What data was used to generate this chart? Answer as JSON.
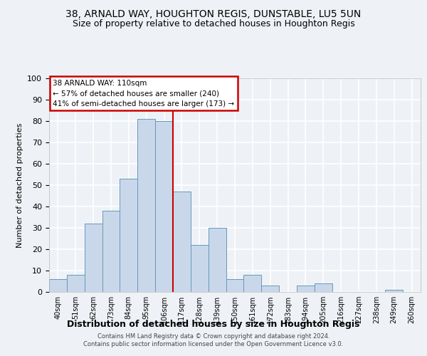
{
  "title": "38, ARNALD WAY, HOUGHTON REGIS, DUNSTABLE, LU5 5UN",
  "subtitle": "Size of property relative to detached houses in Houghton Regis",
  "xlabel": "Distribution of detached houses by size in Houghton Regis",
  "ylabel": "Number of detached properties",
  "bar_labels": [
    "40sqm",
    "51sqm",
    "62sqm",
    "73sqm",
    "84sqm",
    "95sqm",
    "106sqm",
    "117sqm",
    "128sqm",
    "139sqm",
    "150sqm",
    "161sqm",
    "172sqm",
    "183sqm",
    "194sqm",
    "205sqm",
    "216sqm",
    "227sqm",
    "238sqm",
    "249sqm",
    "260sqm"
  ],
  "bar_values": [
    6,
    8,
    32,
    38,
    53,
    81,
    80,
    47,
    22,
    30,
    6,
    8,
    3,
    0,
    3,
    4,
    0,
    0,
    0,
    1,
    0
  ],
  "bar_color": "#c8d8ea",
  "bar_edgecolor": "#6699bb",
  "vline_x_index": 6,
  "vline_color": "#cc0000",
  "ylim": [
    0,
    100
  ],
  "yticks": [
    0,
    10,
    20,
    30,
    40,
    50,
    60,
    70,
    80,
    90,
    100
  ],
  "annotation_title": "38 ARNALD WAY: 110sqm",
  "annotation_line1": "← 57% of detached houses are smaller (240)",
  "annotation_line2": "41% of semi-detached houses are larger (173) →",
  "annotation_box_color": "#cc0000",
  "footer1": "Contains HM Land Registry data © Crown copyright and database right 2024.",
  "footer2": "Contains public sector information licensed under the Open Government Licence v3.0.",
  "bg_color": "#eef2f6",
  "grid_color": "#ffffff",
  "title_fontsize": 10,
  "subtitle_fontsize": 9
}
